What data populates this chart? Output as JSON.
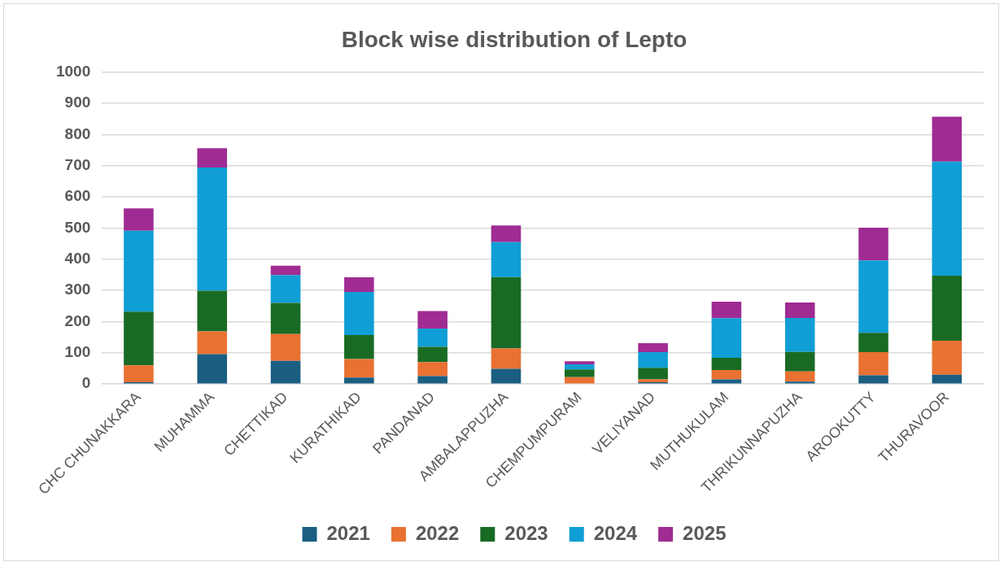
{
  "chart_data": {
    "type": "bar",
    "title": "Block wise distribution of Lepto",
    "stacked": true,
    "categories": [
      "CHC CHUNAKKARA",
      "MUHAMMA",
      "CHETTIKAD",
      "KURATHIKAD",
      "PANDANAD",
      "AMBALAPPUZHA",
      "CHEMPUMPURAM",
      "VELIYANAD",
      "MUTHUKULAM",
      "THRIKUNNAPUZHA",
      "AROOKUTTY",
      "THURAVOOR"
    ],
    "series": [
      {
        "name": "2021",
        "color": "#1a5e82",
        "values": [
          6,
          96,
          74,
          21,
          25,
          49,
          null,
          6,
          15,
          8,
          28,
          30
        ]
      },
      {
        "name": "2022",
        "color": "#e97132",
        "values": [
          54,
          73,
          86,
          59,
          45,
          65,
          22,
          9,
          30,
          32,
          74,
          109
        ]
      },
      {
        "name": "2023",
        "color": "#196b24",
        "values": [
          172,
          130,
          100,
          77,
          49,
          229,
          25,
          37,
          39,
          63,
          62,
          208
        ]
      },
      {
        "name": "2024",
        "color": "#0f9ed5",
        "values": [
          259,
          395,
          89,
          138,
          59,
          112,
          16,
          50,
          127,
          109,
          232,
          366
        ]
      },
      {
        "name": "2025",
        "color": "#a02b93",
        "values": [
          72,
          62,
          30,
          47,
          56,
          53,
          10,
          29,
          53,
          49,
          105,
          144
        ]
      }
    ],
    "ylim": [
      0,
      1000
    ],
    "yticks": [
      0,
      100,
      200,
      300,
      400,
      500,
      600,
      700,
      800,
      900,
      1000
    ],
    "grid": "y",
    "legend": "bottom"
  }
}
